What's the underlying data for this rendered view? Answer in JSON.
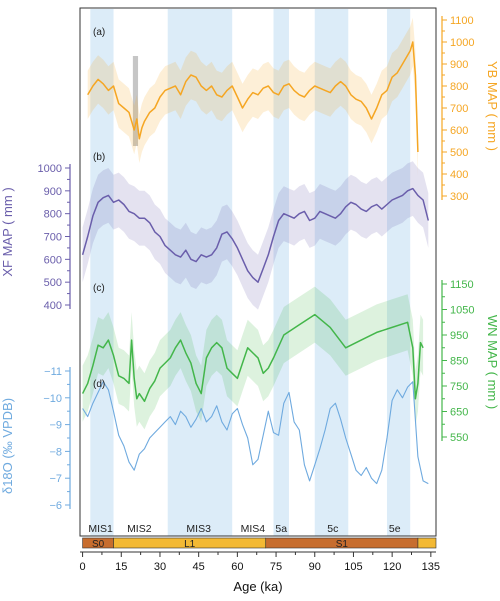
{
  "colors": {
    "ya_bai": "#f5a623",
    "xf": "#6a5eab",
    "wn": "#43b64a",
    "d18o": "#6faadf",
    "shade": "#dcecf8",
    "soil_red": "#c76d2e",
    "soil_yellow": "#f3b934",
    "grey_bar": "#b8b8b8"
  },
  "chart_data": {
    "type": "line",
    "x_axis": {
      "label": "Age (ka)",
      "ticks": [
        "0",
        "15",
        "30",
        "45",
        "60",
        "75",
        "90",
        "105",
        "120",
        "135"
      ],
      "tick_values": [
        0,
        15,
        30,
        45,
        60,
        75,
        90,
        105,
        120,
        135
      ],
      "range": [
        -1,
        137
      ]
    },
    "shaded_intervals": [
      [
        3,
        12
      ],
      [
        33,
        58
      ],
      [
        74,
        80
      ],
      [
        90,
        103
      ],
      [
        118,
        127
      ]
    ],
    "grey_bar": [
      19.5,
      21.5
    ],
    "stage_labels": [
      {
        "text": "MIS1",
        "x": 7
      },
      {
        "text": "MIS2",
        "x": 22
      },
      {
        "text": "MIS3",
        "x": 45
      },
      {
        "text": "MIS4",
        "x": 66
      },
      {
        "text": "5a",
        "x": 77
      },
      {
        "text": "5c",
        "x": 97
      },
      {
        "text": "5e",
        "x": 121
      }
    ],
    "soil_units": [
      {
        "label": "S0",
        "start": 0,
        "end": 12,
        "kind": "red"
      },
      {
        "label": "L1",
        "start": 12,
        "end": 71,
        "kind": "yellow"
      },
      {
        "label": "S1",
        "start": 71,
        "end": 130,
        "kind": "red"
      },
      {
        "label": "",
        "start": 130,
        "end": 137,
        "kind": "yellow"
      }
    ],
    "panels": [
      {
        "id": "a",
        "label": "(a)",
        "axis_title": "YB MAP ( mm )",
        "side": "right",
        "ticks": [
          "300",
          "400",
          "500",
          "600",
          "700",
          "800",
          "900",
          "1000",
          "1100"
        ],
        "tick_values": [
          300,
          400,
          500,
          600,
          700,
          800,
          900,
          1000,
          1100
        ],
        "series": {
          "name": "YB MAP",
          "x": [
            2,
            4,
            6,
            8,
            10,
            12,
            14,
            16,
            18,
            19,
            20,
            21,
            22,
            23,
            24,
            26,
            28,
            30,
            32,
            34,
            36,
            38,
            40,
            42,
            44,
            46,
            48,
            50,
            52,
            54,
            56,
            58,
            60,
            62,
            64,
            66,
            68,
            70,
            72,
            74,
            76,
            78,
            80,
            82,
            84,
            86,
            88,
            90,
            92,
            94,
            96,
            98,
            100,
            102,
            104,
            106,
            108,
            110,
            112,
            114,
            116,
            118,
            120,
            122,
            124,
            126,
            127,
            128,
            129,
            130
          ],
          "y": [
            760,
            800,
            830,
            810,
            780,
            800,
            720,
            700,
            680,
            640,
            600,
            650,
            560,
            610,
            640,
            680,
            700,
            750,
            780,
            790,
            800,
            760,
            820,
            850,
            840,
            800,
            780,
            800,
            760,
            750,
            780,
            800,
            750,
            700,
            740,
            770,
            760,
            790,
            800,
            770,
            760,
            800,
            810,
            780,
            760,
            750,
            780,
            800,
            790,
            780,
            770,
            800,
            820,
            800,
            760,
            740,
            730,
            700,
            650,
            700,
            760,
            780,
            840,
            860,
            900,
            940,
            960,
            1000,
            850,
            500
          ],
          "band": 110
        }
      },
      {
        "id": "b",
        "label": "(b)",
        "axis_title": "XF MAP ( mm )",
        "side": "left",
        "ticks": [
          "400",
          "500",
          "600",
          "700",
          "800",
          "900",
          "1000"
        ],
        "tick_values": [
          400,
          500,
          600,
          700,
          800,
          900,
          1000
        ],
        "series": {
          "name": "XF MAP",
          "x": [
            0,
            2,
            4,
            6,
            8,
            10,
            12,
            14,
            16,
            18,
            20,
            22,
            24,
            26,
            28,
            30,
            32,
            34,
            36,
            38,
            40,
            42,
            44,
            46,
            48,
            50,
            52,
            54,
            56,
            58,
            60,
            62,
            64,
            66,
            68,
            70,
            72,
            74,
            76,
            78,
            80,
            82,
            84,
            86,
            88,
            90,
            92,
            94,
            96,
            98,
            100,
            102,
            104,
            106,
            108,
            110,
            112,
            114,
            116,
            118,
            120,
            122,
            124,
            126,
            128,
            130,
            132,
            134
          ],
          "y": [
            620,
            700,
            790,
            850,
            870,
            880,
            850,
            860,
            840,
            810,
            800,
            780,
            780,
            760,
            720,
            700,
            660,
            640,
            620,
            610,
            640,
            600,
            590,
            620,
            610,
            620,
            650,
            710,
            720,
            690,
            650,
            600,
            550,
            520,
            500,
            560,
            620,
            700,
            770,
            800,
            790,
            780,
            800,
            810,
            770,
            780,
            810,
            800,
            790,
            780,
            800,
            830,
            850,
            840,
            820,
            810,
            830,
            840,
            820,
            840,
            860,
            870,
            880,
            900,
            910,
            880,
            860,
            770
          ],
          "band": 120
        }
      },
      {
        "id": "c",
        "label": "(c)",
        "axis_title": "WN MAP ( mm )",
        "side": "right",
        "ticks": [
          "550",
          "650",
          "750",
          "850",
          "950",
          "1050",
          "1150"
        ],
        "tick_values": [
          550,
          650,
          750,
          850,
          950,
          1050,
          1150
        ],
        "series": {
          "name": "WN MAP",
          "x": [
            0,
            2,
            4,
            6,
            8,
            10,
            12,
            14,
            16,
            18,
            19,
            20,
            21,
            22,
            24,
            26,
            28,
            30,
            32,
            34,
            36,
            38,
            40,
            42,
            44,
            46,
            48,
            50,
            52,
            54,
            56,
            58,
            60,
            62,
            64,
            66,
            68,
            70,
            72,
            74,
            78,
            84,
            90,
            96,
            102,
            108,
            114,
            120,
            126,
            128,
            129,
            130,
            131,
            132
          ],
          "y": [
            720,
            760,
            830,
            910,
            900,
            930,
            870,
            790,
            780,
            760,
            930,
            780,
            700,
            720,
            690,
            740,
            770,
            820,
            840,
            860,
            900,
            930,
            880,
            840,
            760,
            720,
            860,
            900,
            920,
            900,
            820,
            800,
            780,
            840,
            900,
            880,
            860,
            800,
            820,
            860,
            950,
            990,
            1030,
            980,
            900,
            930,
            960,
            980,
            1000,
            900,
            700,
            760,
            920,
            900
          ],
          "band": 110
        }
      },
      {
        "id": "d",
        "label": "(d)",
        "axis_title": "δ18O (‰ VPDB)",
        "side": "left",
        "ticks": [
          "−6",
          "−7",
          "−8",
          "−9",
          "−10",
          "−11"
        ],
        "tick_values": [
          -6,
          -7,
          -8,
          -9,
          -10,
          -11
        ],
        "series": {
          "name": "δ18O",
          "x": [
            0,
            2,
            4,
            6,
            8,
            10,
            12,
            14,
            16,
            18,
            20,
            22,
            24,
            26,
            28,
            30,
            32,
            34,
            36,
            38,
            40,
            42,
            44,
            46,
            48,
            50,
            52,
            54,
            56,
            58,
            60,
            62,
            64,
            66,
            68,
            70,
            72,
            74,
            76,
            78,
            80,
            82,
            84,
            86,
            88,
            90,
            92,
            94,
            96,
            98,
            100,
            102,
            104,
            106,
            108,
            110,
            112,
            114,
            116,
            118,
            120,
            122,
            124,
            126,
            128,
            130,
            132,
            134
          ],
          "y": [
            -9.6,
            -9.3,
            -9.8,
            -10.2,
            -10.6,
            -10.3,
            -9.5,
            -8.6,
            -8.2,
            -7.6,
            -7.3,
            -7.9,
            -8.1,
            -8.5,
            -8.7,
            -8.9,
            -9.1,
            -9.3,
            -9.0,
            -9.5,
            -9.3,
            -8.9,
            -9.2,
            -9.6,
            -9.1,
            -9.3,
            -9.7,
            -9.1,
            -8.8,
            -9.4,
            -9.6,
            -9.0,
            -8.5,
            -7.5,
            -7.7,
            -8.6,
            -9.5,
            -8.7,
            -8.6,
            -9.8,
            -10.2,
            -9.1,
            -8.8,
            -7.5,
            -6.9,
            -7.5,
            -8.1,
            -8.8,
            -9.6,
            -9.8,
            -9.2,
            -8.5,
            -7.9,
            -7.3,
            -7.1,
            -7.4,
            -7.0,
            -6.8,
            -7.3,
            -8.5,
            -9.9,
            -10.3,
            -10.0,
            -10.4,
            -10.6,
            -7.8,
            -6.9,
            -6.8
          ],
          "band": 0
        }
      }
    ]
  }
}
